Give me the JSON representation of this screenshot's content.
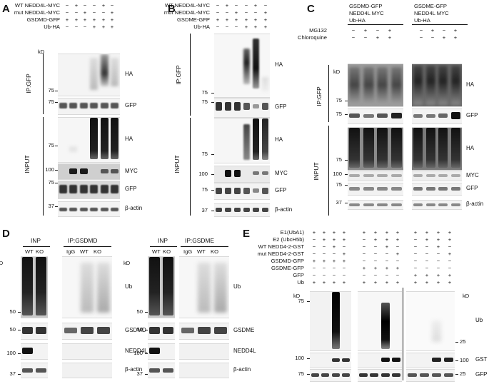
{
  "panels": {
    "A": {
      "label": "A",
      "conditions": [
        {
          "name": "WT NEDD4L-MYC",
          "values": [
            "−",
            "+",
            "−",
            "−",
            "+",
            "−"
          ]
        },
        {
          "name": "mut NEDD4L-MYC",
          "values": [
            "−",
            "−",
            "+",
            "−",
            "−",
            "+"
          ]
        },
        {
          "name": "GSDMD-GFP",
          "values": [
            "+",
            "+",
            "+",
            "+",
            "+",
            "+"
          ]
        },
        {
          "name": "Ub-HA",
          "values": [
            "−",
            "−",
            "−",
            "+",
            "+",
            "+"
          ]
        }
      ],
      "kd": "kD",
      "sections": {
        "ip": "IP:GFP",
        "input": "INPUT"
      },
      "blots": [
        {
          "band": "HA",
          "markers": [
            "75"
          ]
        },
        {
          "band": "GFP",
          "markers": [
            "75"
          ]
        },
        {
          "band": "HA",
          "markers": [
            "75"
          ]
        },
        {
          "band": "MYC",
          "markers": [
            "100"
          ]
        },
        {
          "band": "GFP",
          "markers": [
            "75"
          ]
        },
        {
          "band": "β-actin",
          "markers": [
            "37"
          ]
        }
      ]
    },
    "B": {
      "label": "B",
      "conditions": [
        {
          "name": "WT NEDD4L-MYC",
          "values": [
            "−",
            "+",
            "−",
            "−",
            "+",
            "−"
          ]
        },
        {
          "name": "mut NEDD4L-MYC",
          "values": [
            "−",
            "−",
            "+",
            "−",
            "−",
            "+"
          ]
        },
        {
          "name": "GSDME-GFP",
          "values": [
            "+",
            "+",
            "+",
            "+",
            "+",
            "+"
          ]
        },
        {
          "name": "Ub-HA",
          "values": [
            "−",
            "−",
            "−",
            "+",
            "+",
            "+"
          ]
        }
      ],
      "kd": "kD",
      "sections": {
        "ip": "IP:GFP",
        "input": "INPUT"
      },
      "blots": [
        {
          "band": "HA",
          "markers": [
            "75"
          ]
        },
        {
          "band": "GFP",
          "markers": [
            "75"
          ]
        },
        {
          "band": "HA",
          "markers": [
            "75"
          ]
        },
        {
          "band": "MYC",
          "markers": [
            "100"
          ]
        },
        {
          "band": "GFP",
          "markers": [
            "75"
          ]
        },
        {
          "band": "β-actin",
          "markers": [
            "37"
          ]
        }
      ]
    },
    "C": {
      "label": "C",
      "group_left": [
        "GSDMD-GFP",
        "NEDD4L MYC",
        "Ub-HA"
      ],
      "group_right": [
        "GSDME-GFP",
        "NEDD4L MYC",
        "Ub-HA"
      ],
      "conditions": [
        {
          "name": "MG132",
          "values": [
            "−",
            "+",
            "−",
            "+",
            "−",
            "+",
            "−",
            "+"
          ]
        },
        {
          "name": "Chloroquine",
          "values": [
            "−",
            "−",
            "+",
            "+",
            "−",
            "−",
            "+",
            "+"
          ]
        }
      ],
      "kd": "kD",
      "sections": {
        "ip": "IP:GFP",
        "input": "INPUT"
      },
      "blots": [
        {
          "band": "HA",
          "markers": [
            "75"
          ]
        },
        {
          "band": "GFP",
          "markers": [
            "75"
          ]
        },
        {
          "band": "HA",
          "markers": [
            "75"
          ]
        },
        {
          "band": "MYC",
          "markers": [
            "100"
          ]
        },
        {
          "band": "GFP",
          "markers": [
            "75"
          ]
        },
        {
          "band": "β-actin",
          "markers": [
            "37"
          ]
        }
      ]
    },
    "D": {
      "label": "D",
      "left": {
        "inp": "INP",
        "ip": "IP:GSDMD",
        "inp_lanes": [
          "WT",
          "KO"
        ],
        "ip_lanes": [
          "IgG",
          "WT",
          "KO"
        ],
        "blots": [
          {
            "band": "Ub",
            "markers": [
              "50"
            ]
          },
          {
            "band": "GSDMD",
            "markers": [
              "50"
            ]
          },
          {
            "band": "NEDD4L",
            "markers": [
              "100"
            ]
          },
          {
            "band": "β-actin",
            "markers": [
              "37"
            ]
          }
        ]
      },
      "right": {
        "inp": "INP",
        "ip": "IP:GSDME",
        "inp_lanes": [
          "WT",
          "KO"
        ],
        "ip_lanes": [
          "IgG",
          "WT",
          "KO"
        ],
        "blots": [
          {
            "band": "Ub",
            "markers": [
              "50"
            ]
          },
          {
            "band": "GSDME",
            "markers": [
              "50"
            ]
          },
          {
            "band": "NEDD4L",
            "markers": [
              "100"
            ]
          },
          {
            "band": "β-actin",
            "markers": [
              "37"
            ]
          }
        ]
      },
      "kd": "kD"
    },
    "E": {
      "label": "E",
      "conditions": [
        {
          "name": "E1(UbA1)",
          "values": [
            "+",
            "+",
            "+",
            "+",
            "+",
            "+",
            "+",
            "+",
            "+",
            "+",
            "+",
            "+"
          ]
        },
        {
          "name": "E2 (UbcH5b)",
          "values": [
            "−",
            "+",
            "+",
            "+",
            "−",
            "+",
            "+",
            "+",
            "−",
            "+",
            "+",
            "+"
          ]
        },
        {
          "name": "WT NEDD4-2-GST",
          "values": [
            "−",
            "−",
            "+",
            "−",
            "−",
            "−",
            "+",
            "−",
            "−",
            "−",
            "+",
            "−"
          ]
        },
        {
          "name": "mut NEDD4-2-GST",
          "values": [
            "−",
            "−",
            "−",
            "+",
            "−",
            "−",
            "−",
            "+",
            "−",
            "−",
            "−",
            "+"
          ]
        },
        {
          "name": "GSDMD-GFP",
          "values": [
            "+",
            "+",
            "+",
            "+",
            "−",
            "−",
            "−",
            "−",
            "−",
            "−",
            "−",
            "−"
          ]
        },
        {
          "name": "GSDME-GFP",
          "values": [
            "−",
            "−",
            "−",
            "−",
            "+",
            "+",
            "+",
            "+",
            "−",
            "−",
            "−",
            "−"
          ]
        },
        {
          "name": "GFP",
          "values": [
            "−",
            "−",
            "−",
            "−",
            "−",
            "−",
            "−",
            "−",
            "+",
            "+",
            "+",
            "+"
          ]
        },
        {
          "name": "Ub",
          "values": [
            "+",
            "+",
            "+",
            "+",
            "+",
            "+",
            "+",
            "+",
            "+",
            "+",
            "+",
            "+"
          ]
        }
      ],
      "kd": "kD",
      "blots": [
        {
          "band": "Ub",
          "markers_left": [
            "75"
          ],
          "markers_right": [
            "25"
          ]
        },
        {
          "band": "GST",
          "markers_left": [
            "100"
          ],
          "markers_right": [
            "100"
          ]
        },
        {
          "band": "GFP",
          "markers_left": [
            "75"
          ],
          "markers_right": [
            "25"
          ]
        }
      ]
    }
  }
}
